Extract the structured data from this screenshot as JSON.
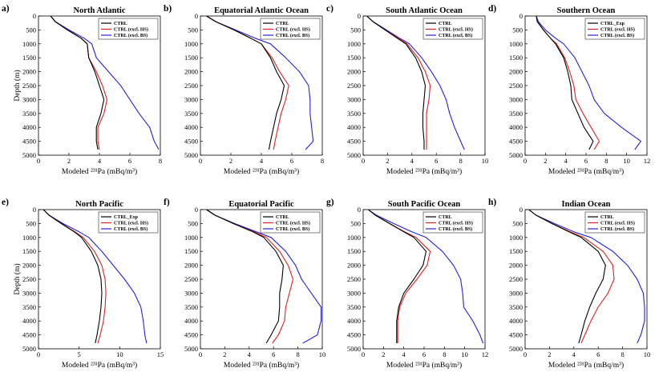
{
  "figure": {
    "ylabel_text": "Depth (m)",
    "xlabel_text": "Modeled ²³¹Pa (mBq/m³)"
  },
  "series_styles": {
    "CTRL": "#000000",
    "CTRL_Exp": "#000000",
    "CTRL (excl. HS)": "#e02020",
    "CTRL (excl. BS)": "#2222dd"
  },
  "chart_data": [
    {
      "label": "a)",
      "type": "line",
      "title": "North Atlantic",
      "xlabel": "Modeled ²³¹Pa (mBq/m³)",
      "ylabel": "Depth (m)",
      "xlim": [
        0,
        8
      ],
      "ylim": [
        0,
        5000
      ],
      "y_inverted": true,
      "xticks": [
        0,
        2,
        4,
        6,
        8
      ],
      "yticks": [
        0,
        500,
        1000,
        1500,
        2000,
        2500,
        3000,
        3500,
        4000,
        4500,
        5000
      ],
      "legend": "top-right",
      "depth": [
        0,
        200,
        500,
        800,
        1000,
        1500,
        2000,
        2500,
        3000,
        3500,
        4000,
        4500,
        4800
      ],
      "series": [
        {
          "name": "CTRL",
          "values": [
            0.8,
            1.1,
            1.9,
            2.8,
            3.2,
            3.3,
            3.7,
            4.0,
            4.3,
            4.1,
            3.8,
            3.8,
            3.9
          ]
        },
        {
          "name": "CTRL (excl. HS)",
          "values": [
            0.8,
            1.1,
            1.9,
            2.8,
            3.2,
            3.3,
            3.8,
            4.2,
            4.5,
            4.3,
            3.9,
            3.9,
            4.0
          ]
        },
        {
          "name": "CTRL (excl. BS)",
          "values": [
            0.8,
            1.1,
            2.0,
            3.0,
            3.5,
            3.8,
            4.6,
            5.4,
            6.0,
            6.6,
            7.3,
            7.6,
            7.9
          ]
        }
      ]
    },
    {
      "label": "b)",
      "type": "line",
      "title": "Equatorial Atlantic Ocean",
      "xlabel": "Modeled ²³¹Pa (mBq/m³)",
      "ylabel": "Depth (m)",
      "xlim": [
        0,
        8
      ],
      "ylim": [
        0,
        5000
      ],
      "y_inverted": true,
      "xticks": [
        0,
        2,
        4,
        6,
        8
      ],
      "yticks": [
        0,
        500,
        1000,
        1500,
        2000,
        2500,
        3000,
        3500,
        4000,
        4500,
        5000
      ],
      "legend": "top-right",
      "depth": [
        0,
        200,
        500,
        800,
        1000,
        1500,
        2000,
        2500,
        3000,
        3500,
        4000,
        4500,
        4800
      ],
      "series": [
        {
          "name": "CTRL",
          "values": [
            0.4,
            1.0,
            2.2,
            3.3,
            4.0,
            4.6,
            5.0,
            5.5,
            5.3,
            5.0,
            4.8,
            4.6,
            4.5
          ]
        },
        {
          "name": "CTRL (excl. HS)",
          "values": [
            0.4,
            1.0,
            2.2,
            3.3,
            4.0,
            4.7,
            5.2,
            5.8,
            5.6,
            5.3,
            5.1,
            4.9,
            4.8
          ]
        },
        {
          "name": "CTRL (excl. BS)",
          "values": [
            0.4,
            1.0,
            2.3,
            3.6,
            4.6,
            5.6,
            6.5,
            7.1,
            7.2,
            7.2,
            7.3,
            7.4,
            6.9
          ]
        }
      ]
    },
    {
      "label": "c)",
      "type": "line",
      "title": "South Atlantic Ocean",
      "xlabel": "Modeled ²³¹Pa (mBq/m³)",
      "ylabel": "Depth (m)",
      "xlim": [
        0,
        10
      ],
      "ylim": [
        0,
        5000
      ],
      "y_inverted": true,
      "xticks": [
        0,
        2,
        4,
        6,
        8,
        10
      ],
      "yticks": [
        0,
        500,
        1000,
        1500,
        2000,
        2500,
        3000,
        3500,
        4000,
        4500,
        5000
      ],
      "legend": "top-right",
      "depth": [
        0,
        200,
        500,
        800,
        1000,
        1500,
        2000,
        2500,
        3000,
        3500,
        4000,
        4500,
        4800
      ],
      "series": [
        {
          "name": "CTRL",
          "values": [
            0.3,
            0.8,
            1.8,
            2.8,
            3.5,
            4.3,
            4.8,
            5.1,
            5.0,
            4.9,
            4.9,
            5.0,
            5.0
          ]
        },
        {
          "name": "CTRL (excl. HS)",
          "values": [
            0.3,
            0.8,
            1.8,
            2.9,
            3.6,
            4.5,
            5.1,
            5.5,
            5.4,
            5.2,
            5.2,
            5.2,
            5.2
          ]
        },
        {
          "name": "CTRL (excl. BS)",
          "values": [
            0.3,
            0.8,
            1.9,
            3.0,
            3.8,
            4.8,
            5.6,
            6.3,
            6.8,
            7.1,
            7.5,
            8.0,
            8.3
          ]
        }
      ]
    },
    {
      "label": "d)",
      "type": "line",
      "title": "Southern Ocean",
      "xlabel": "Modeled ²³¹Pa (mBq/m³)",
      "ylabel": "Depth (m)",
      "xlim": [
        0,
        12
      ],
      "ylim": [
        0,
        5000
      ],
      "y_inverted": true,
      "xticks": [
        0,
        2,
        4,
        6,
        8,
        10,
        12
      ],
      "yticks": [
        0,
        500,
        1000,
        1500,
        2000,
        2500,
        3000,
        3500,
        4000,
        4500,
        5000
      ],
      "legend": "top-right",
      "depth": [
        0,
        200,
        500,
        800,
        1000,
        1500,
        2000,
        2500,
        3000,
        3500,
        4000,
        4500,
        4800
      ],
      "series": [
        {
          "name": "CTRL_Exp",
          "values": [
            1.1,
            1.2,
            1.8,
            2.5,
            3.0,
            3.8,
            4.2,
            4.5,
            4.6,
            5.2,
            5.8,
            6.7,
            6.3
          ]
        },
        {
          "name": "CTRL (excl. HS)",
          "values": [
            1.1,
            1.2,
            1.8,
            2.5,
            3.1,
            3.9,
            4.4,
            4.8,
            5.0,
            5.7,
            6.5,
            7.3,
            6.8
          ]
        },
        {
          "name": "CTRL (excl. BS)",
          "values": [
            1.1,
            1.3,
            2.0,
            3.0,
            3.8,
            4.9,
            5.6,
            6.3,
            6.8,
            7.8,
            9.5,
            11.4,
            10.8
          ]
        }
      ]
    },
    {
      "label": "e)",
      "type": "line",
      "title": "North Pacific",
      "xlabel": "Modeled ²³¹Pa (mBq/m³)",
      "ylabel": "Depth (m)",
      "xlim": [
        0,
        15
      ],
      "ylim": [
        0,
        5000
      ],
      "y_inverted": true,
      "xticks": [
        0,
        5,
        10,
        15
      ],
      "yticks": [
        0,
        500,
        1000,
        1500,
        2000,
        2500,
        3000,
        3500,
        4000,
        4500,
        5000
      ],
      "legend": "top-right",
      "depth": [
        0,
        200,
        500,
        800,
        1000,
        1500,
        2000,
        2500,
        3000,
        3500,
        4000,
        4500,
        4800
      ],
      "series": [
        {
          "name": "CTRL_Exp",
          "values": [
            0.6,
            1.3,
            2.8,
            4.4,
            5.3,
            6.5,
            7.3,
            7.7,
            7.8,
            7.7,
            7.5,
            7.2,
            7.0
          ]
        },
        {
          "name": "CTRL (excl. HS)",
          "values": [
            0.6,
            1.3,
            2.8,
            4.5,
            5.5,
            6.9,
            7.8,
            8.2,
            8.3,
            8.2,
            8.0,
            7.6,
            7.3
          ]
        },
        {
          "name": "CTRL (excl. BS)",
          "values": [
            0.6,
            1.3,
            3.0,
            5.0,
            6.2,
            7.8,
            9.2,
            10.6,
            11.8,
            12.6,
            12.9,
            13.1,
            13.3
          ]
        }
      ]
    },
    {
      "label": "f)",
      "type": "line",
      "title": "Equatorial Pacific",
      "xlabel": "Modeled ²³¹Pa (mBq/m³)",
      "ylabel": "Depth (m)",
      "xlim": [
        0,
        10
      ],
      "ylim": [
        0,
        5000
      ],
      "y_inverted": true,
      "xticks": [
        0,
        2,
        4,
        6,
        8,
        10
      ],
      "yticks": [
        0,
        500,
        1000,
        1500,
        2000,
        2500,
        3000,
        3500,
        4000,
        4500,
        5000
      ],
      "legend": "top-right",
      "depth": [
        0,
        200,
        500,
        800,
        1000,
        1500,
        2000,
        2500,
        3000,
        3500,
        4000,
        4500,
        4800
      ],
      "series": [
        {
          "name": "CTRL",
          "values": [
            0.5,
            1.2,
            2.7,
            4.3,
            5.2,
            6.2,
            6.8,
            6.7,
            6.5,
            6.5,
            6.4,
            5.8,
            5.4
          ]
        },
        {
          "name": "CTRL (excl. HS)",
          "values": [
            0.5,
            1.2,
            2.7,
            4.4,
            5.4,
            6.5,
            7.2,
            7.6,
            7.3,
            7.0,
            6.9,
            6.4,
            5.9
          ]
        },
        {
          "name": "CTRL (excl. BS)",
          "values": [
            0.5,
            1.2,
            2.8,
            4.6,
            5.8,
            7.0,
            7.8,
            8.3,
            9.1,
            9.9,
            9.9,
            9.6,
            8.4
          ]
        }
      ]
    },
    {
      "label": "g)",
      "type": "line",
      "title": "South Pacific Ocean",
      "xlabel": "Modeled ²³¹Pa (mBq/m³)",
      "ylabel": "Depth (m)",
      "xlim": [
        0,
        12
      ],
      "ylim": [
        0,
        5000
      ],
      "y_inverted": true,
      "xticks": [
        0,
        2,
        4,
        6,
        8,
        10,
        12
      ],
      "yticks": [
        0,
        500,
        1000,
        1500,
        2000,
        2500,
        3000,
        3500,
        4000,
        4500,
        5000
      ],
      "legend": "top-right",
      "depth": [
        0,
        200,
        500,
        800,
        1000,
        1500,
        2000,
        2500,
        3000,
        3500,
        4000,
        4500,
        4800
      ],
      "series": [
        {
          "name": "CTRL",
          "values": [
            0.5,
            1.2,
            2.6,
            4.0,
            5.0,
            6.2,
            5.9,
            5.0,
            4.0,
            3.5,
            3.3,
            3.3,
            3.3
          ]
        },
        {
          "name": "CTRL (excl. HS)",
          "values": [
            0.5,
            1.2,
            2.6,
            4.1,
            5.2,
            6.6,
            6.3,
            5.3,
            4.2,
            3.6,
            3.4,
            3.4,
            3.4
          ]
        },
        {
          "name": "CTRL (excl. BS)",
          "values": [
            0.5,
            1.3,
            3.0,
            4.8,
            6.2,
            7.8,
            8.9,
            9.6,
            9.8,
            9.9,
            10.8,
            11.5,
            11.8
          ]
        }
      ]
    },
    {
      "label": "h)",
      "type": "line",
      "title": "Indian Ocean",
      "xlabel": "Modeled ²³¹Pa (mBq/m³)",
      "ylabel": "Depth (m)",
      "xlim": [
        0,
        10
      ],
      "ylim": [
        0,
        5000
      ],
      "y_inverted": true,
      "xticks": [
        0,
        2,
        4,
        6,
        8,
        10
      ],
      "yticks": [
        0,
        500,
        1000,
        1500,
        2000,
        2500,
        3000,
        3500,
        4000,
        4500,
        5000
      ],
      "legend": "top-right",
      "depth": [
        0,
        200,
        500,
        800,
        1000,
        1500,
        2000,
        2500,
        3000,
        3500,
        4000,
        4500,
        4800
      ],
      "series": [
        {
          "name": "CTRL",
          "values": [
            0.3,
            0.9,
            2.2,
            3.6,
            4.6,
            6.0,
            6.6,
            6.4,
            5.8,
            5.3,
            4.9,
            4.6,
            4.4
          ]
        },
        {
          "name": "CTRL (excl. HS)",
          "values": [
            0.3,
            0.9,
            2.2,
            3.7,
            4.8,
            6.4,
            7.2,
            7.3,
            6.8,
            6.0,
            5.4,
            4.9,
            4.6
          ]
        },
        {
          "name": "CTRL (excl. BS)",
          "values": [
            0.3,
            0.9,
            2.4,
            4.0,
            5.4,
            7.2,
            8.4,
            9.2,
            9.7,
            9.8,
            9.8,
            9.5,
            9.2
          ]
        }
      ]
    }
  ]
}
